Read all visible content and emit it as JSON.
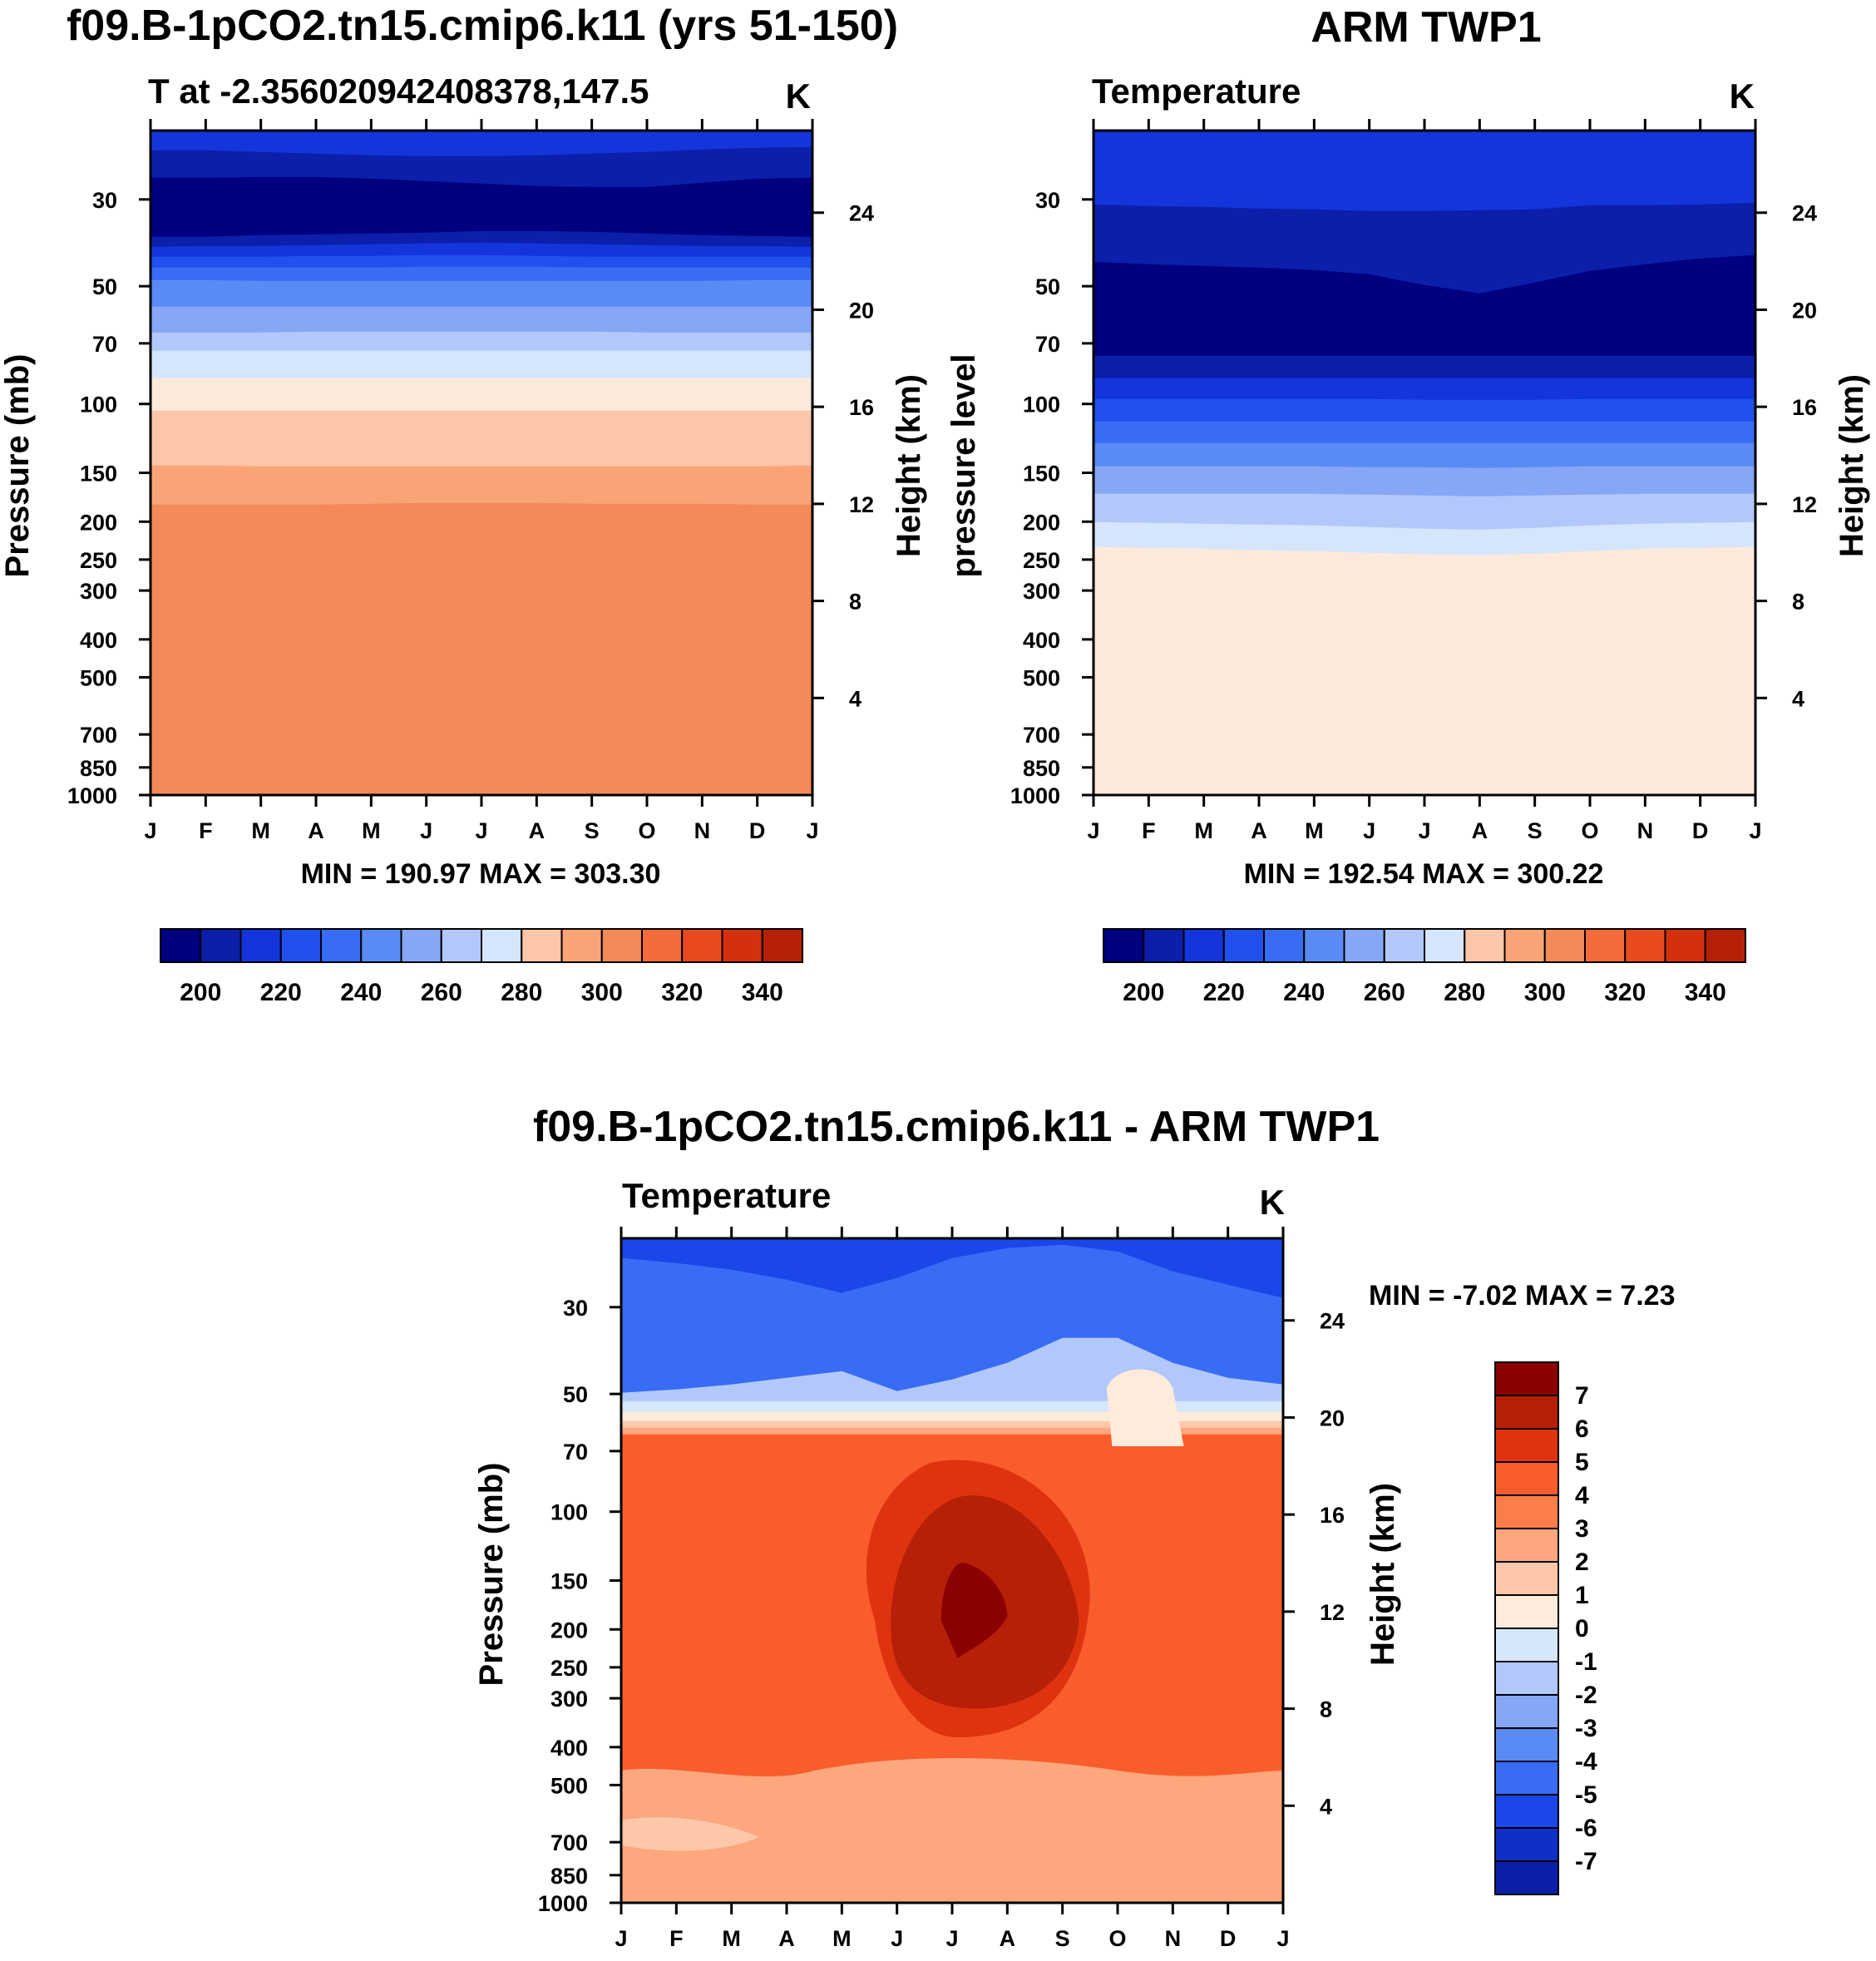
{
  "chart_data": [
    {
      "type": "heatmap",
      "id": "model",
      "title": "f09.B-1pCO2.tn15.cmip6.k11 (yrs 51-150)",
      "left_label": "T at -2.356020942408378,147.5",
      "units": "K",
      "ylabel": "Pressure (mb)",
      "ylabel_right": "Height (km)",
      "x_ticks": [
        "J",
        "F",
        "M",
        "A",
        "M",
        "J",
        "J",
        "A",
        "S",
        "O",
        "N",
        "D",
        "J"
      ],
      "y_ticks": [
        30,
        50,
        70,
        100,
        150,
        200,
        250,
        300,
        400,
        500,
        700,
        850,
        1000
      ],
      "ylim": [
        1000,
        20
      ],
      "height_ticks": [
        24,
        20,
        16,
        12,
        8,
        4
      ],
      "min_max": "MIN = 190.97 MAX = 303.30",
      "colorbar_labels": [
        "200",
        "220",
        "240",
        "260",
        "280",
        "300",
        "320",
        "340"
      ],
      "levels": [
        195,
        200,
        205,
        210,
        215,
        220,
        225,
        230,
        235,
        240,
        245,
        250,
        255,
        260,
        265,
        270,
        275,
        280,
        285,
        290,
        295,
        300,
        305
      ],
      "boundaries": [
        [
          24,
          24,
          26,
          28,
          30,
          31,
          31,
          30,
          28,
          26,
          23,
          21,
          20
        ],
        [
          57,
          57,
          56,
          56,
          58,
          61,
          64,
          67,
          68,
          68,
          63,
          58,
          57
        ],
        [
          128,
          128,
          126,
          125,
          124,
          123,
          121,
          121,
          122,
          124,
          126,
          127,
          128
        ],
        [
          140,
          139,
          139,
          138,
          137,
          136,
          135,
          136,
          137,
          138,
          139,
          139,
          140
        ],
        [
          152,
          152,
          152,
          151,
          151,
          150,
          150,
          151,
          152,
          152,
          152,
          152,
          152
        ],
        [
          165,
          165,
          165,
          165,
          165,
          164,
          164,
          164,
          165,
          165,
          165,
          165,
          165
        ],
        [
          180,
          180,
          181,
          181,
          181,
          181,
          181,
          181,
          181,
          181,
          181,
          180,
          180
        ],
        [
          212,
          212,
          212,
          212,
          212,
          212,
          212,
          212,
          212,
          212,
          212,
          212,
          212
        ],
        [
          243,
          243,
          243,
          242,
          242,
          242,
          242,
          242,
          242,
          243,
          243,
          243,
          243
        ],
        [
          265,
          265,
          265,
          265,
          265,
          265,
          265,
          265,
          265,
          265,
          265,
          265,
          265
        ],
        [
          298,
          298,
          298,
          298,
          298,
          298,
          298,
          298,
          298,
          298,
          298,
          298,
          298
        ],
        [
          337,
          337,
          337,
          337,
          337,
          337,
          337,
          337,
          337,
          337,
          337,
          337,
          337
        ],
        [
          403,
          403,
          404,
          404,
          404,
          404,
          404,
          404,
          404,
          404,
          404,
          404,
          403
        ],
        [
          450,
          450,
          450,
          450,
          449,
          448,
          448,
          448,
          449,
          449,
          449,
          450,
          450
        ],
        [
          478,
          478,
          478,
          478,
          478,
          477,
          476,
          476,
          477,
          478,
          478,
          478,
          478
        ],
        [
          530,
          530,
          530,
          529,
          528,
          527,
          527,
          527,
          528,
          529,
          529,
          530,
          530
        ],
        [
          593,
          593,
          593,
          593,
          593,
          593,
          593,
          593,
          593,
          593,
          593,
          593,
          593
        ]
      ],
      "fills": [
        "#1435dc",
        "#0b1faa",
        "#000080",
        "#0b1faa",
        "#1435dc",
        "#2050ee",
        "#386cf5",
        "#5a8af4",
        "#86a7f6",
        "#b2c8fa",
        "#d5e6fc",
        "#fde9dc",
        "#fcc6a8",
        "#f8a477",
        "#f38a57"
      ]
    },
    {
      "type": "heatmap",
      "id": "obs",
      "title": "ARM TWP1",
      "left_label": "Temperature",
      "units": "K",
      "ylabel": "pressure level",
      "ylabel_right": "Height (km)",
      "x_ticks": [
        "J",
        "F",
        "M",
        "A",
        "M",
        "J",
        "J",
        "A",
        "S",
        "O",
        "N",
        "D",
        "J"
      ],
      "y_ticks": [
        30,
        50,
        70,
        100,
        150,
        200,
        250,
        300,
        400,
        500,
        700,
        850,
        1000
      ],
      "ylim": [
        1000,
        20
      ],
      "height_ticks": [
        24,
        20,
        16,
        12,
        8,
        4
      ],
      "min_max": "MIN = 192.54 MAX = 300.22",
      "colorbar_labels": [
        "200",
        "220",
        "240",
        "260",
        "280",
        "300",
        "320",
        "340"
      ],
      "levels": [
        195,
        200,
        205,
        210,
        215,
        220,
        225,
        230,
        235,
        240,
        245,
        250,
        255,
        260,
        265,
        270,
        275,
        280,
        285,
        290,
        295,
        300
      ],
      "boundaries": [
        [
          89,
          91,
          92,
          94,
          95,
          97,
          97,
          96,
          95,
          90,
          90,
          89,
          87
        ],
        [
          158,
          161,
          163,
          165,
          168,
          173,
          186,
          196,
          183,
          169,
          161,
          154,
          150
        ],
        [
          271,
          271,
          271,
          271,
          271,
          271,
          271,
          271,
          271,
          271,
          271,
          271,
          271
        ],
        [
          298,
          298,
          298,
          298,
          298,
          298,
          298,
          298,
          298,
          298,
          298,
          298,
          298
        ],
        [
          323,
          323,
          323,
          323,
          323,
          323,
          324,
          324,
          324,
          323,
          323,
          323,
          323
        ],
        [
          350,
          350,
          350,
          350,
          350,
          350,
          350,
          350,
          350,
          350,
          350,
          350,
          350
        ],
        [
          376,
          376,
          376,
          376,
          376,
          376,
          376,
          376,
          376,
          376,
          376,
          376,
          376
        ],
        [
          404,
          404,
          404,
          404,
          404,
          405,
          405,
          406,
          405,
          404,
          404,
          404,
          404
        ],
        [
          437,
          437,
          437,
          437,
          437,
          438,
          439,
          440,
          439,
          438,
          437,
          437,
          437
        ],
        [
          471,
          472,
          473,
          474,
          475,
          477,
          479,
          480,
          478,
          475,
          473,
          472,
          471
        ],
        [
          501,
          502,
          503,
          505,
          506,
          508,
          510,
          511,
          509,
          506,
          503,
          502,
          501
        ]
      ],
      "fills": [
        "#1435dc",
        "#0b1faa",
        "#000080",
        "#0b1faa",
        "#1435dc",
        "#2050ee",
        "#386cf5",
        "#5a8af4",
        "#86a7f6",
        "#b2c8fa",
        "#d5e6fc",
        "#fde9dc",
        "#fcc6a8",
        "#f8a477"
      ]
    },
    {
      "type": "heatmap",
      "id": "diff",
      "title": "f09.B-1pCO2.tn15.cmip6.k11 - ARM TWP1",
      "left_label": "Temperature",
      "units": "K",
      "ylabel": "Pressure (mb)",
      "ylabel_right": "Height (km)",
      "x_ticks": [
        "J",
        "F",
        "M",
        "A",
        "M",
        "J",
        "J",
        "A",
        "S",
        "O",
        "N",
        "D",
        "J"
      ],
      "y_ticks": [
        30,
        50,
        70,
        100,
        150,
        200,
        250,
        300,
        400,
        500,
        700,
        850,
        1000
      ],
      "ylim": [
        1000,
        20
      ],
      "height_ticks": [
        24,
        20,
        16,
        12,
        8,
        4
      ],
      "min_max": "MIN =  -7.02 MAX =    7.23",
      "colorbar_labels": [
        "7",
        "6",
        "5",
        "4",
        "3",
        "2",
        "1",
        "0",
        "-1",
        "-2",
        "-3",
        "-4",
        "-5",
        "-6",
        "-7"
      ],
      "levels": [
        -7,
        -6,
        -5,
        -4,
        -3,
        -2,
        -1,
        0,
        1,
        2,
        3,
        4,
        5,
        6,
        7
      ],
      "colorbar_colors": [
        "#8b0000",
        "#b52007",
        "#df3310",
        "#f95d2c",
        "#fb7d4a",
        "#fca77e",
        "#fdc8aa",
        "#fdebdc",
        "#d5e7fb",
        "#b2c8fa",
        "#86a7f6",
        "#5a8af4",
        "#386cf5",
        "#1a46ea",
        "#0f2fc6",
        "#0b1faa",
        "#000080"
      ],
      "boundaries": [
        [
          24,
          30,
          38,
          50,
          66,
          48,
          24,
          12,
          8,
          16,
          40,
          56,
          72
        ],
        [
          186,
          182,
          176,
          168,
          160,
          184,
          170,
          150,
          120,
          120,
          150,
          168,
          176
        ],
        [
          196,
          196,
          196,
          196,
          196,
          196,
          196,
          196,
          196,
          196,
          196,
          196,
          196
        ],
        [
          209,
          209,
          209,
          209,
          209,
          209,
          209,
          209,
          209,
          209,
          209,
          209,
          209
        ],
        [
          220,
          220,
          220,
          220,
          220,
          220,
          220,
          220,
          220,
          220,
          220,
          220,
          220
        ],
        [
          228,
          228,
          228,
          228,
          228,
          228,
          228,
          228,
          228,
          228,
          228,
          228,
          228
        ],
        [
          236,
          236,
          236,
          236,
          236,
          236,
          236,
          236,
          236,
          236,
          236,
          236,
          236
        ]
      ],
      "fills": [
        "#1a46ea",
        "#386cf5",
        "#b2c8fa",
        "#d5e7fb",
        "#fdebdc",
        "#fdc8aa",
        "#fca77e",
        "#f95d2c"
      ]
    }
  ]
}
